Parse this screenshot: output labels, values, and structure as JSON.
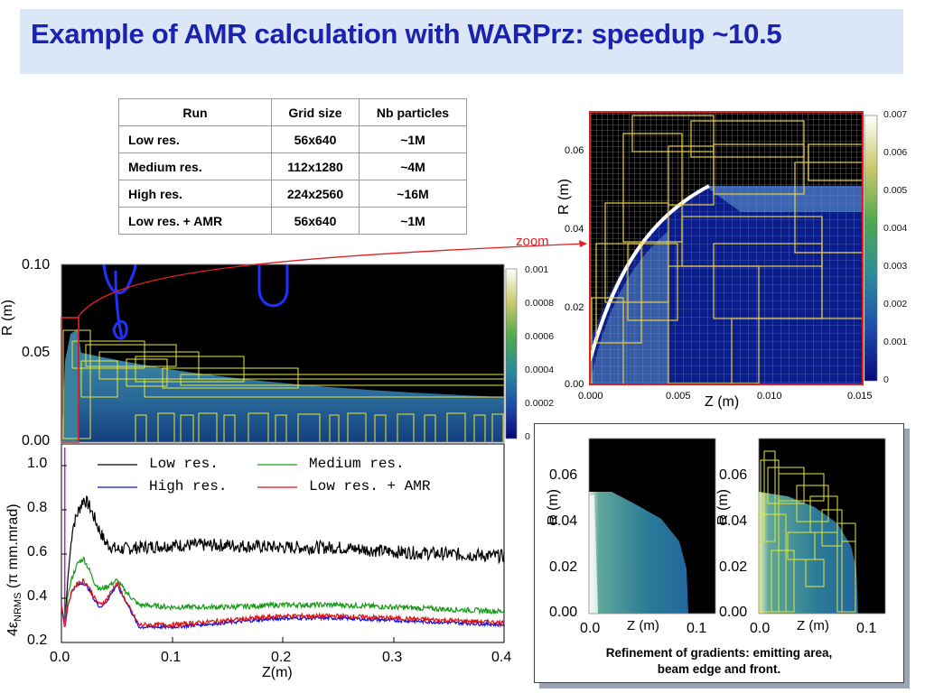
{
  "slide": {
    "title": "Example of AMR calculation with WARPrz: speedup ~10.5"
  },
  "table": {
    "headers": [
      "Run",
      "Grid size",
      "Nb particles"
    ],
    "rows": [
      {
        "run": "Low res.",
        "grid": "56x640",
        "particles": "~1M"
      },
      {
        "run": "Medium res.",
        "grid": "112x1280",
        "particles": "~4M"
      },
      {
        "run": "High res.",
        "grid": "224x2560",
        "particles": "~16M"
      },
      {
        "run": "Low res. + AMR",
        "grid": "56x640",
        "particles": "~1M"
      }
    ]
  },
  "density_main": {
    "ylabel": "R (m)",
    "yticks": [
      "0.10",
      "0.05",
      "0.00"
    ],
    "colorbar_ticks": [
      "0.001",
      "0.0008",
      "0.0006",
      "0.0004",
      "0.0002",
      "0"
    ]
  },
  "zoom": {
    "label": "zoom",
    "xlabel": "Z (m)",
    "ylabel": "R (m)",
    "xticks": [
      "0.000",
      "0.005",
      "0.010",
      "0.015"
    ],
    "yticks": [
      "0.06",
      "0.04",
      "0.02",
      "0.00"
    ],
    "colorbar_ticks": [
      "0.007",
      "0.006",
      "0.005",
      "0.004",
      "0.003",
      "0.002",
      "0.001",
      "0"
    ]
  },
  "emittance": {
    "ylabel_main": "4ε",
    "ylabel_sub": "NRMS",
    "ylabel_rest": " (π mm.mrad)",
    "xlabel": "Z(m)",
    "yticks": [
      "1.0",
      "0.8",
      "0.6",
      "0.4",
      "0.2"
    ],
    "xticks": [
      "0.0",
      "0.1",
      "0.2",
      "0.3",
      "0.4"
    ],
    "legend": [
      {
        "name": "Low res.",
        "color": "#000000"
      },
      {
        "name": "Medium res.",
        "color": "#1a9a1a"
      },
      {
        "name": "High res.",
        "color": "#1010e0"
      },
      {
        "name": "Low res. + AMR",
        "color": "#e01010"
      }
    ]
  },
  "refinement": {
    "panels": [
      {
        "ylabel": "R (m)",
        "xlabel": "Z (m)",
        "yticks": [
          "0.06",
          "0.04",
          "0.02",
          "0.00"
        ],
        "xticks": [
          "0.0",
          "0.1"
        ]
      },
      {
        "ylabel": "R (m)",
        "xlabel": "Z (m)",
        "yticks": [
          "0.06",
          "0.04",
          "0.02",
          "0.00"
        ],
        "xticks": [
          "0.0",
          "0.1"
        ]
      }
    ],
    "caption_line1": "Refinement of gradients: emitting area,",
    "caption_line2": "beam edge and front."
  },
  "chart_data": {
    "type": "line",
    "xlabel": "Z(m)",
    "ylabel": "4εNRMS (π mm.mrad)",
    "xlim": [
      0,
      0.4
    ],
    "ylim": [
      0.2,
      1.0
    ],
    "series": [
      {
        "name": "Low res.",
        "x": [
          0,
          0.003,
          0.006,
          0.01,
          0.015,
          0.02,
          0.025,
          0.03,
          0.035,
          0.04,
          0.05,
          0.07,
          0.1,
          0.15,
          0.2,
          0.25,
          0.3,
          0.35,
          0.4
        ],
        "values": [
          0.37,
          0.28,
          0.5,
          0.72,
          0.79,
          0.85,
          0.82,
          0.76,
          0.7,
          0.65,
          0.62,
          0.63,
          0.64,
          0.64,
          0.63,
          0.63,
          0.61,
          0.6,
          0.59
        ]
      },
      {
        "name": "Medium res.",
        "x": [
          0,
          0.003,
          0.006,
          0.01,
          0.015,
          0.02,
          0.025,
          0.03,
          0.035,
          0.04,
          0.05,
          0.06,
          0.07,
          0.1,
          0.15,
          0.2,
          0.25,
          0.3,
          0.35,
          0.4
        ],
        "values": [
          0.37,
          0.28,
          0.42,
          0.5,
          0.56,
          0.58,
          0.53,
          0.47,
          0.44,
          0.45,
          0.48,
          0.42,
          0.37,
          0.36,
          0.36,
          0.37,
          0.37,
          0.36,
          0.35,
          0.34
        ]
      },
      {
        "name": "High res.",
        "x": [
          0,
          0.003,
          0.006,
          0.01,
          0.015,
          0.02,
          0.025,
          0.03,
          0.035,
          0.04,
          0.05,
          0.06,
          0.07,
          0.1,
          0.15,
          0.2,
          0.25,
          0.3,
          0.35,
          0.4
        ],
        "values": [
          0.37,
          0.27,
          0.37,
          0.44,
          0.46,
          0.47,
          0.44,
          0.39,
          0.36,
          0.38,
          0.46,
          0.37,
          0.27,
          0.27,
          0.29,
          0.31,
          0.31,
          0.3,
          0.29,
          0.28
        ]
      },
      {
        "name": "Low res. + AMR",
        "x": [
          0,
          0.003,
          0.006,
          0.01,
          0.015,
          0.02,
          0.025,
          0.03,
          0.035,
          0.04,
          0.05,
          0.06,
          0.07,
          0.1,
          0.15,
          0.2,
          0.25,
          0.3,
          0.35,
          0.4
        ],
        "values": [
          0.37,
          0.26,
          0.37,
          0.44,
          0.47,
          0.48,
          0.45,
          0.4,
          0.37,
          0.39,
          0.47,
          0.37,
          0.28,
          0.28,
          0.3,
          0.32,
          0.32,
          0.31,
          0.3,
          0.29
        ]
      }
    ],
    "legend": "top"
  }
}
